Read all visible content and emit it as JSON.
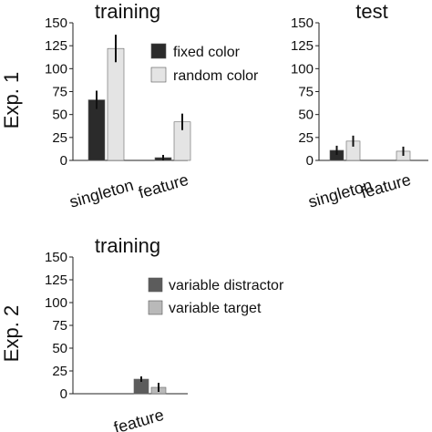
{
  "row_labels": [
    "Exp. 1",
    "Exp. 2"
  ],
  "chart_data": [
    {
      "type": "bar",
      "title": "training",
      "categories": [
        "singleton",
        "feature"
      ],
      "ylim": [
        0,
        150
      ],
      "yticks": [
        0,
        25,
        50,
        75,
        100,
        125,
        150
      ],
      "legend": "top-right",
      "series": [
        {
          "name": "fixed color",
          "color": "#2b2b2b",
          "values": [
            66,
            3
          ],
          "errors": [
            10,
            3
          ]
        },
        {
          "name": "random color",
          "color": "#e4e4e4",
          "values": [
            122,
            42
          ],
          "errors": [
            15,
            9
          ]
        }
      ]
    },
    {
      "type": "bar",
      "title": "test",
      "categories": [
        "singleton",
        "feature"
      ],
      "ylim": [
        0,
        150
      ],
      "yticks": [
        0,
        25,
        50,
        75,
        100,
        125,
        150
      ],
      "series": [
        {
          "color": "#2b2b2b",
          "values": [
            11,
            0
          ],
          "errors": [
            5,
            0
          ]
        },
        {
          "color": "#e4e4e4",
          "values": [
            21,
            10
          ],
          "errors": [
            6,
            5
          ]
        }
      ]
    },
    {
      "type": "bar",
      "title": "training",
      "categories": [
        "",
        "feature"
      ],
      "ylim": [
        0,
        150
      ],
      "yticks": [
        0,
        25,
        50,
        75,
        100,
        125,
        150
      ],
      "legend": "top-right",
      "series": [
        {
          "name": "variable distractor",
          "color": "#5c5c5c",
          "values": [
            0,
            16
          ],
          "errors": [
            0,
            3
          ]
        },
        {
          "name": "variable target",
          "color": "#b9b9b9",
          "values": [
            0,
            7
          ],
          "errors": [
            0,
            5
          ]
        }
      ]
    }
  ]
}
